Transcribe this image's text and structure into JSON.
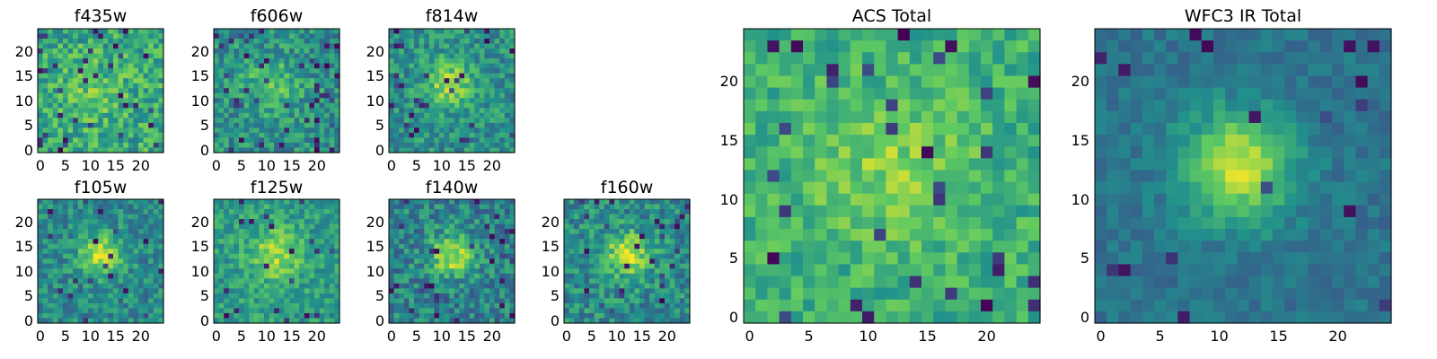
{
  "chart_data": [
    {
      "type": "heatmap",
      "title": "f435w",
      "x_ticks": [
        "0",
        "5",
        "10",
        "15",
        "20"
      ],
      "y_ticks": [
        "0",
        "5",
        "10",
        "15",
        "20"
      ],
      "grid_size": 25,
      "xlim": [
        -0.5,
        24.5
      ],
      "ylim": [
        -0.5,
        24.5
      ],
      "colormap": "viridis",
      "pattern": "noise"
    },
    {
      "type": "heatmap",
      "title": "f606w",
      "x_ticks": [
        "0",
        "5",
        "10",
        "15",
        "20"
      ],
      "y_ticks": [
        "0",
        "5",
        "10",
        "15",
        "20"
      ],
      "grid_size": 25,
      "xlim": [
        -0.5,
        24.5
      ],
      "ylim": [
        -0.5,
        24.5
      ],
      "colormap": "viridis",
      "pattern": "faint central source"
    },
    {
      "type": "heatmap",
      "title": "f814w",
      "x_ticks": [
        "0",
        "5",
        "10",
        "15",
        "20"
      ],
      "y_ticks": [
        "0",
        "5",
        "10",
        "15",
        "20"
      ],
      "grid_size": 25,
      "xlim": [
        -0.5,
        24.5
      ],
      "ylim": [
        -0.5,
        24.5
      ],
      "colormap": "viridis",
      "pattern": "central source"
    },
    {
      "type": "heatmap",
      "title": "f105w",
      "x_ticks": [
        "0",
        "5",
        "10",
        "15",
        "20"
      ],
      "y_ticks": [
        "0",
        "5",
        "10",
        "15",
        "20"
      ],
      "grid_size": 25,
      "xlim": [
        -0.5,
        24.5
      ],
      "ylim": [
        -0.5,
        24.5
      ],
      "colormap": "viridis",
      "pattern": "central source"
    },
    {
      "type": "heatmap",
      "title": "f125w",
      "x_ticks": [
        "0",
        "5",
        "10",
        "15",
        "20"
      ],
      "y_ticks": [
        "0",
        "5",
        "10",
        "15",
        "20"
      ],
      "grid_size": 25,
      "xlim": [
        -0.5,
        24.5
      ],
      "ylim": [
        -0.5,
        24.5
      ],
      "colormap": "viridis",
      "pattern": "central source"
    },
    {
      "type": "heatmap",
      "title": "f140w",
      "x_ticks": [
        "0",
        "5",
        "10",
        "15",
        "20"
      ],
      "y_ticks": [
        "0",
        "5",
        "10",
        "15",
        "20"
      ],
      "grid_size": 25,
      "xlim": [
        -0.5,
        24.5
      ],
      "ylim": [
        -0.5,
        24.5
      ],
      "colormap": "viridis",
      "pattern": "central source"
    },
    {
      "type": "heatmap",
      "title": "f160w",
      "x_ticks": [
        "0",
        "5",
        "10",
        "15",
        "20"
      ],
      "y_ticks": [
        "0",
        "5",
        "10",
        "15",
        "20"
      ],
      "grid_size": 25,
      "xlim": [
        -0.5,
        24.5
      ],
      "ylim": [
        -0.5,
        24.5
      ],
      "colormap": "viridis",
      "pattern": "central source"
    },
    {
      "type": "heatmap",
      "title": "ACS Total",
      "x_ticks": [
        "0",
        "5",
        "10",
        "15",
        "20"
      ],
      "y_ticks": [
        "0",
        "5",
        "10",
        "15",
        "20"
      ],
      "grid_size": 25,
      "xlim": [
        -0.5,
        24.5
      ],
      "ylim": [
        -0.5,
        24.5
      ],
      "colormap": "viridis",
      "pattern": "faint central source"
    },
    {
      "type": "heatmap",
      "title": "WFC3 IR Total",
      "x_ticks": [
        "0",
        "5",
        "10",
        "15",
        "20"
      ],
      "y_ticks": [
        "0",
        "5",
        "10",
        "15",
        "20"
      ],
      "grid_size": 25,
      "xlim": [
        -0.5,
        24.5
      ],
      "ylim": [
        -0.5,
        24.5
      ],
      "colormap": "viridis",
      "pattern": "bright central source"
    }
  ],
  "colors": {
    "viridis": [
      "#440154",
      "#3b528b",
      "#21918c",
      "#5ec962",
      "#fde725"
    ],
    "axis": "#000000",
    "background": "#ffffff"
  }
}
